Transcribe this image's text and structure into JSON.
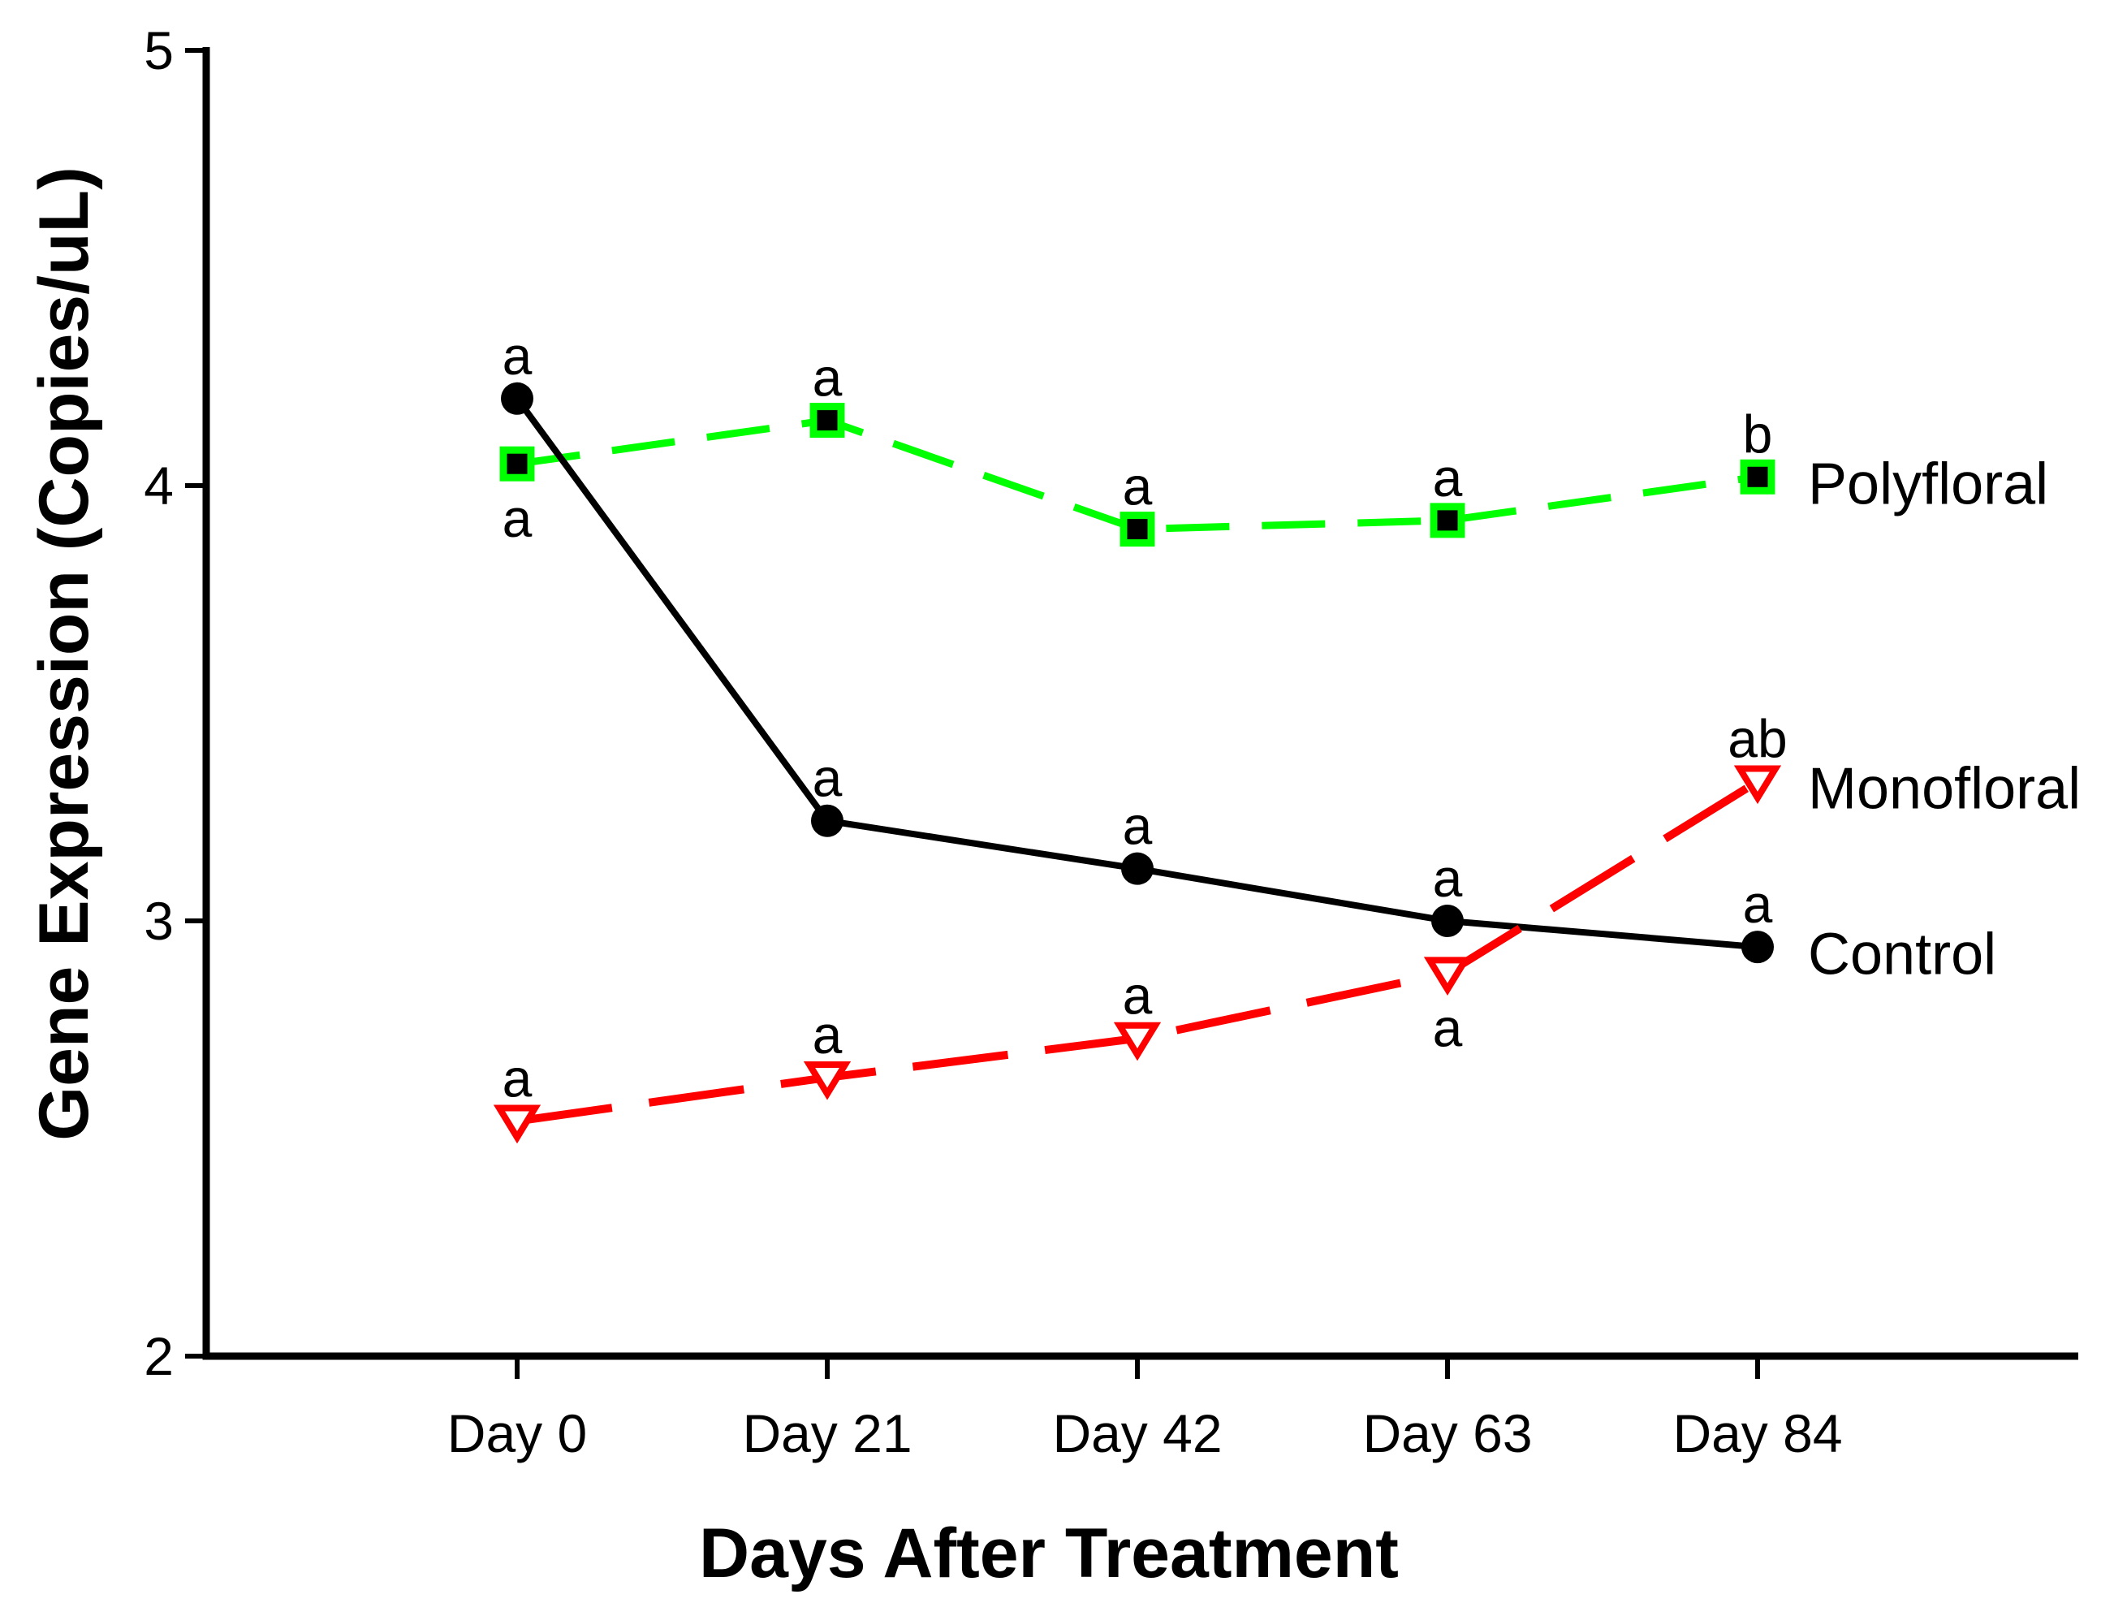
{
  "page": {
    "background": "#ffffff"
  },
  "chart_data": {
    "type": "line",
    "title": "",
    "xlabel": "Days After Treatment",
    "ylabel": "Gene Expression (Copies/uL)",
    "categories": [
      "Day 0",
      "Day 21",
      "Day 42",
      "Day 63",
      "Day 84"
    ],
    "ylim": [
      2,
      5
    ],
    "yticks": [
      2,
      3,
      4,
      5
    ],
    "grid": false,
    "axis_color": "#000000",
    "legend_position": "right-of-last-point",
    "series": [
      {
        "name": "Polyfloral",
        "color": "#00ff00",
        "line_style": "dashed",
        "marker": "black-square-green-border",
        "values": [
          4.05,
          4.15,
          3.9,
          3.92,
          4.02
        ],
        "sig_letters": [
          "a",
          "a",
          "a",
          "a",
          "b"
        ],
        "sig_positions": [
          "below",
          "above",
          "above",
          "above",
          "above"
        ]
      },
      {
        "name": "Control",
        "color": "#000000",
        "line_style": "solid",
        "marker": "black-filled-circle",
        "values": [
          4.2,
          3.23,
          3.12,
          3.0,
          2.94
        ],
        "sig_letters": [
          "a",
          "a",
          "a",
          "a",
          "a"
        ],
        "sig_positions": [
          "above",
          "above",
          "above",
          "above",
          "above"
        ]
      },
      {
        "name": "Monofloral",
        "color": "#ff0000",
        "line_style": "dashed",
        "marker": "open-red-triangle-down",
        "values": [
          2.54,
          2.64,
          2.73,
          2.88,
          3.32
        ],
        "sig_letters": [
          "a",
          "a",
          "a",
          "a",
          "ab"
        ],
        "sig_positions": [
          "above",
          "above",
          "above",
          "below",
          "above"
        ]
      }
    ]
  }
}
